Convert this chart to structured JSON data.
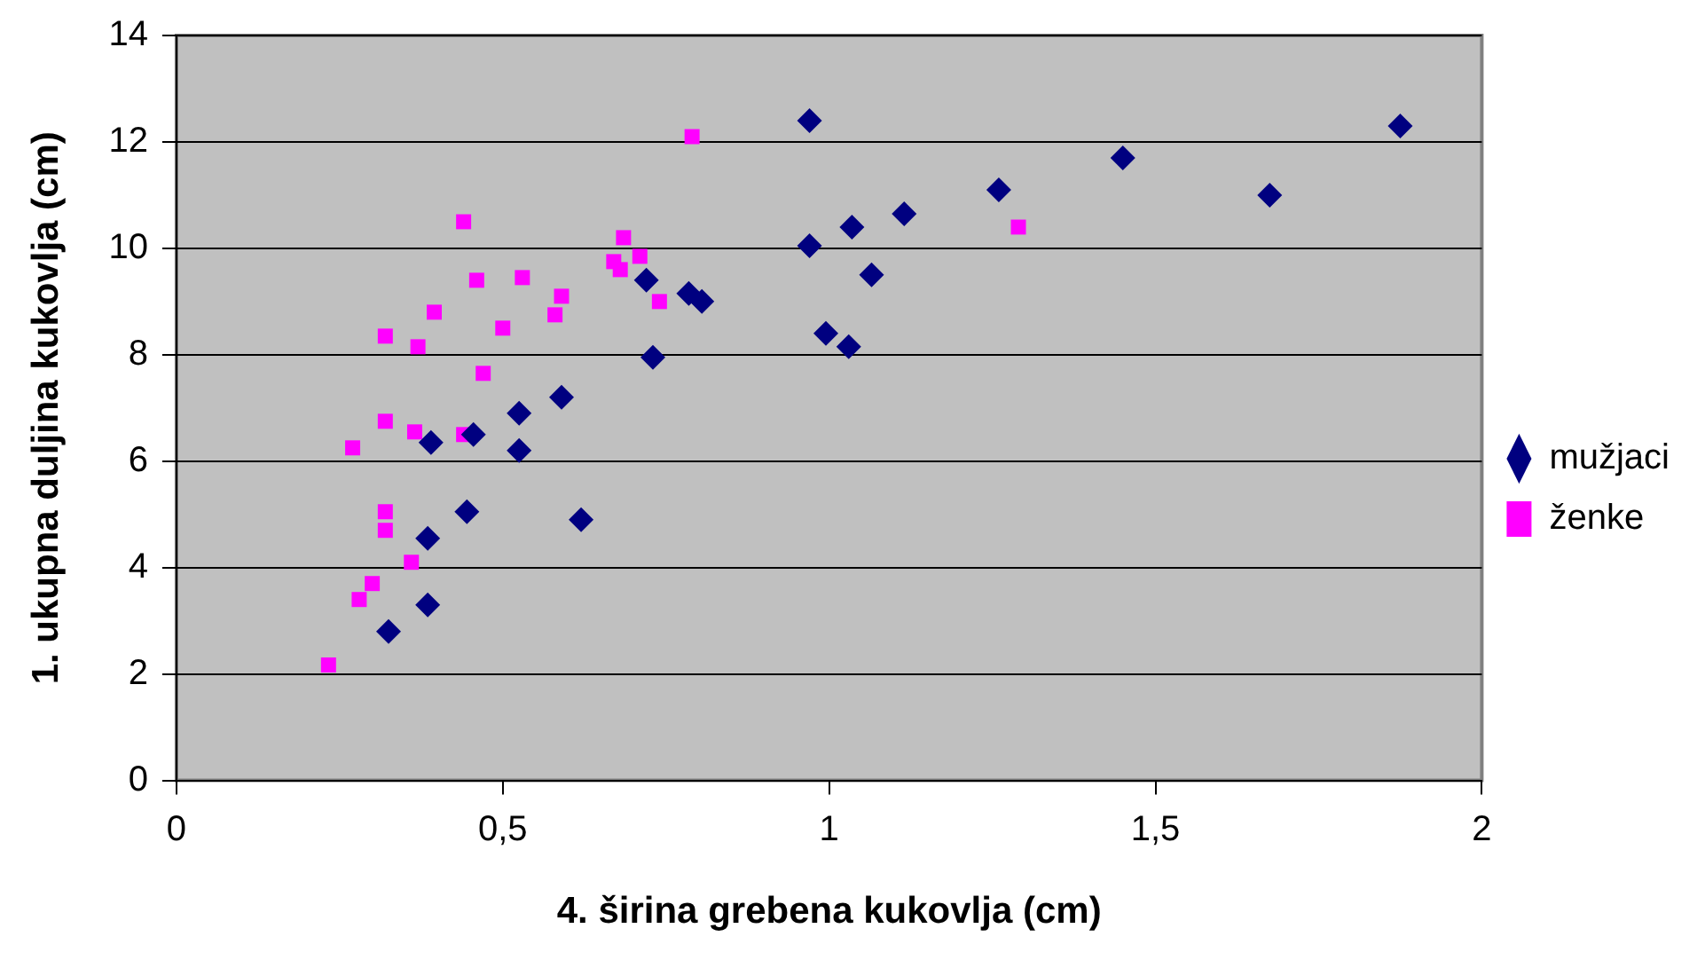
{
  "chart_data": {
    "type": "scatter",
    "xlabel": "4. širina grebena kukovlja (cm)",
    "ylabel": "1. ukupna duljina kukovlja (cm)",
    "xlim": [
      0,
      2
    ],
    "xticks": [
      0,
      {
        "value": 0.5,
        "label": "0,5"
      },
      1,
      {
        "value": 1.5,
        "label": "1,5"
      },
      2
    ],
    "ylim": [
      0,
      14
    ],
    "yticks": [
      0,
      2,
      4,
      6,
      8,
      10,
      12,
      14
    ],
    "grid": "y",
    "legend": "right",
    "series": [
      {
        "name": "mužjaci",
        "color": "#000080",
        "marker": "diamond",
        "x": [
          0.325,
          0.385,
          0.385,
          0.39,
          0.455,
          0.445,
          0.525,
          0.525,
          0.59,
          0.62,
          0.73,
          0.72,
          0.785,
          0.805,
          0.97,
          0.97,
          0.995,
          1.03,
          1.035,
          1.065,
          1.115,
          1.26,
          1.45,
          1.675,
          1.875
        ],
        "values": [
          2.8,
          3.3,
          4.55,
          6.35,
          6.5,
          5.05,
          6.9,
          6.2,
          7.2,
          4.9,
          7.95,
          9.4,
          9.15,
          9.0,
          12.4,
          10.05,
          8.4,
          8.15,
          10.4,
          9.5,
          10.65,
          11.1,
          11.7,
          11.0,
          12.3
        ]
      },
      {
        "name": "ženke",
        "color": "#ff00ff",
        "marker": "square",
        "x": [
          0.233,
          0.28,
          0.3,
          0.36,
          0.32,
          0.32,
          0.27,
          0.32,
          0.365,
          0.44,
          0.47,
          0.32,
          0.37,
          0.395,
          0.44,
          0.46,
          0.5,
          0.53,
          0.58,
          0.59,
          0.67,
          0.68,
          0.685,
          0.71,
          0.74,
          0.79,
          1.29
        ],
        "values": [
          2.17,
          3.4,
          3.7,
          4.1,
          5.05,
          4.7,
          6.25,
          6.75,
          6.55,
          6.5,
          7.65,
          8.35,
          8.15,
          8.8,
          10.5,
          9.4,
          8.5,
          9.45,
          8.75,
          9.1,
          9.75,
          9.6,
          10.2,
          9.85,
          9.0,
          12.1,
          10.4
        ]
      }
    ]
  }
}
